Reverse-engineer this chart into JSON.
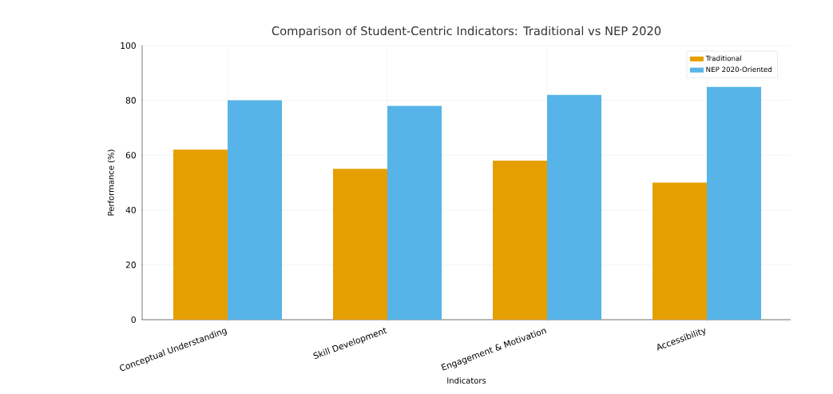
{
  "chart_data": {
    "type": "bar",
    "title": "Comparison of Student-Centric Indicators: Traditional vs NEP 2020",
    "xlabel": "Indicators",
    "ylabel": "Performance (%)",
    "categories": [
      "Conceptual Understanding",
      "Skill Development",
      "Engagement & Motivation",
      "Accessibility"
    ],
    "series": [
      {
        "name": "Traditional",
        "color": "#e69f00",
        "values": [
          62,
          55,
          58,
          50
        ]
      },
      {
        "name": "NEP 2020-Oriented",
        "color": "#56b4e9",
        "values": [
          80,
          78,
          82,
          85
        ]
      }
    ],
    "ylim": [
      0,
      100
    ],
    "yticks": [
      0,
      20,
      40,
      60,
      80,
      100
    ],
    "grid": true,
    "legend": "top right"
  }
}
